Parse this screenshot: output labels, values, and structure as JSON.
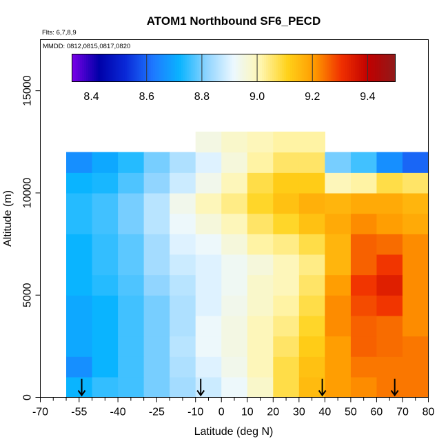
{
  "chart_data": {
    "type": "heatmap",
    "title": "ATOM1 Northbound SF6_PECD",
    "flights_note": "Flts: 6,7,8,9",
    "dates_note": "MMDD: 0812,0815,0817,0820",
    "xlabel": "Latitude (deg N)",
    "ylabel": "Altitude (m)",
    "xlim": [
      -70,
      80
    ],
    "ylim": [
      0,
      17500
    ],
    "x_ticks": [
      -70,
      -55,
      -40,
      -25,
      -10,
      0,
      10,
      20,
      30,
      40,
      50,
      60,
      70,
      80
    ],
    "x_minor_ticks": [
      -65,
      -60,
      -50,
      -45,
      -35,
      -30,
      -20,
      -15,
      -5,
      5,
      15,
      25,
      35,
      45,
      55,
      65,
      75
    ],
    "y_ticks": [
      0,
      5000,
      10000,
      15000
    ],
    "colorbar": {
      "range": [
        8.33,
        9.5
      ],
      "ticks": [
        8.4,
        8.6,
        8.8,
        9.0,
        9.2,
        9.4
      ],
      "tick_labels": [
        "8.4",
        "8.6",
        "8.8",
        "9.0",
        "9.2",
        "9.4"
      ],
      "colors": [
        "#7a00e8",
        "#0000a8",
        "#0a2ad8",
        "#1e78ff",
        "#0ab4ff",
        "#8fd4ff",
        "#ecf8ff",
        "#fff6b0",
        "#ffd21a",
        "#ff9a00",
        "#f03000",
        "#c00000",
        "#901a1a"
      ]
    },
    "profile_markers_lat": [
      -54,
      -8,
      39,
      67
    ],
    "latitude_bins": [
      -55,
      -45,
      -35,
      -25,
      -15,
      -5,
      5,
      15,
      25,
      35,
      45,
      55,
      65,
      75
    ],
    "altitude_bins": [
      500,
      1500,
      2500,
      3500,
      4500,
      5500,
      6500,
      7500,
      8500,
      9500,
      10500,
      11500,
      12500
    ],
    "values": [
      [
        8.72,
        8.75,
        8.76,
        8.8,
        8.84,
        8.88,
        8.92,
        8.98,
        9.08,
        9.15,
        9.2,
        9.22,
        9.24,
        9.24
      ],
      [
        8.66,
        8.72,
        8.76,
        8.8,
        8.85,
        8.9,
        8.94,
        9.0,
        9.08,
        9.14,
        9.2,
        9.24,
        9.24,
        9.24
      ],
      [
        8.7,
        8.72,
        8.76,
        8.8,
        8.86,
        8.92,
        8.95,
        9.0,
        9.06,
        9.12,
        9.2,
        9.26,
        9.25,
        9.24
      ],
      [
        8.7,
        8.72,
        8.76,
        8.8,
        8.85,
        8.92,
        8.95,
        9.0,
        9.04,
        9.1,
        9.22,
        9.26,
        9.25,
        9.22
      ],
      [
        8.7,
        8.72,
        8.76,
        8.8,
        8.85,
        8.9,
        8.94,
        8.98,
        9.02,
        9.08,
        9.22,
        9.28,
        9.3,
        9.22
      ],
      [
        8.72,
        8.74,
        8.77,
        8.82,
        8.86,
        8.9,
        8.93,
        8.98,
        9.0,
        9.06,
        9.2,
        9.3,
        9.34,
        9.22
      ],
      [
        8.72,
        8.75,
        8.78,
        8.84,
        8.88,
        8.9,
        8.93,
        8.96,
        9.0,
        9.04,
        9.16,
        9.26,
        9.3,
        9.22
      ],
      [
        8.72,
        8.75,
        8.78,
        8.84,
        8.9,
        8.92,
        8.96,
        9.02,
        9.04,
        9.08,
        9.16,
        9.26,
        9.25,
        9.22
      ],
      [
        8.74,
        8.76,
        8.8,
        8.86,
        8.92,
        8.96,
        9.0,
        9.06,
        9.1,
        9.14,
        9.18,
        9.22,
        9.2,
        9.18
      ],
      [
        8.74,
        8.76,
        8.8,
        8.86,
        8.94,
        9.0,
        9.04,
        9.1,
        9.14,
        9.17,
        9.16,
        9.18,
        9.18,
        9.16
      ],
      [
        8.72,
        8.73,
        8.77,
        8.82,
        8.88,
        8.94,
        9.0,
        9.08,
        9.12,
        9.12,
        9.0,
        9.02,
        9.08,
        9.06
      ],
      [
        8.66,
        8.7,
        8.74,
        8.8,
        8.85,
        8.9,
        8.96,
        9.02,
        9.06,
        9.06,
        8.8,
        8.76,
        8.66,
        8.6
      ],
      [
        null,
        null,
        null,
        null,
        null,
        8.95,
        8.98,
        9.0,
        9.02,
        9.02,
        null,
        null,
        null,
        null
      ]
    ]
  }
}
